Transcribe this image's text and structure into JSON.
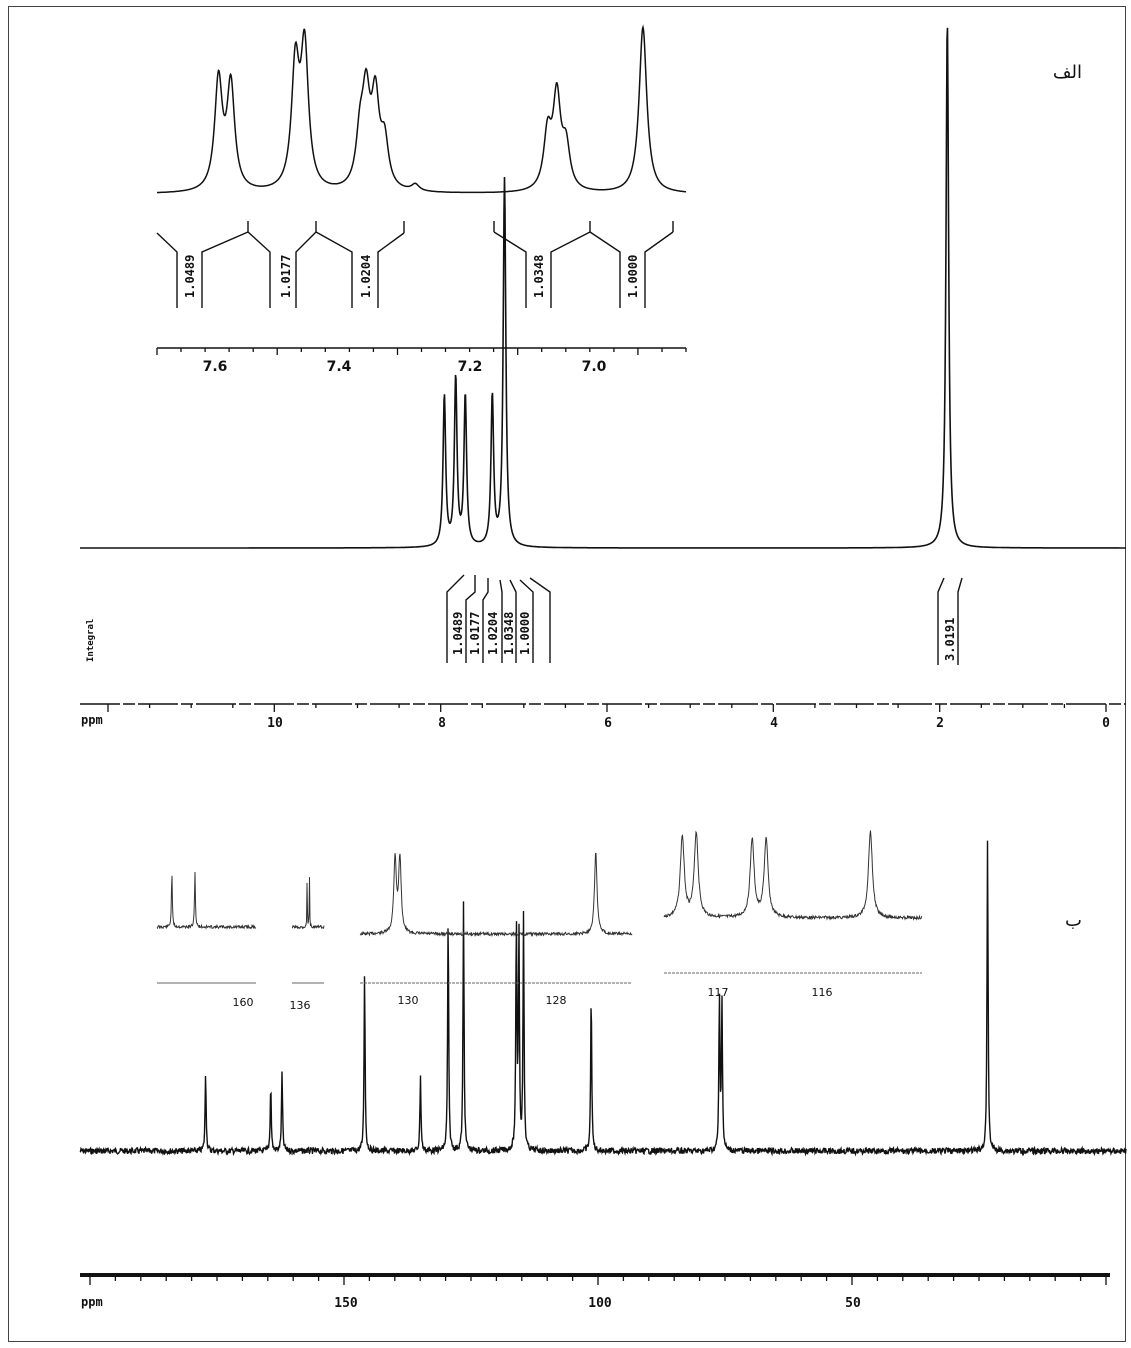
{
  "panels": {
    "a": {
      "label": "الف",
      "axis_unit": "ppm",
      "integral_title": "Integral",
      "ticks": [
        "10",
        "8",
        "6",
        "4",
        "2",
        "0"
      ],
      "inset_ticks": [
        "7.6",
        "7.4",
        "7.2",
        "7.0"
      ],
      "integrals": [
        "1.0489",
        "1.0177",
        "1.0204",
        "1.0348",
        "1.0000",
        "3.0191"
      ]
    },
    "b": {
      "label": "ب",
      "axis_unit": "ppm",
      "ticks": [
        "150",
        "100",
        "50"
      ],
      "inset_ticks": [
        "160",
        "136",
        "130",
        "128",
        "117",
        "116"
      ]
    }
  },
  "chart_data": [
    {
      "type": "line",
      "title": "",
      "xlabel": "ppm",
      "ylabel": "",
      "xlim": [
        11.8,
        -0.2
      ],
      "x_reversed": true,
      "peaks": [
        {
          "ppm": 7.62,
          "rel_height": 0.41
        },
        {
          "ppm": 7.49,
          "rel_height": 0.46
        },
        {
          "ppm": 7.38,
          "rel_height": 0.41
        },
        {
          "ppm": 7.07,
          "rel_height": 0.42
        },
        {
          "ppm": 6.93,
          "rel_height": 0.97
        },
        {
          "ppm": 1.85,
          "rel_height": 1.0
        }
      ],
      "integrals": [
        {
          "ppm": 7.62,
          "value": 1.0489
        },
        {
          "ppm": 7.49,
          "value": 1.0177
        },
        {
          "ppm": 7.38,
          "value": 1.0204
        },
        {
          "ppm": 7.07,
          "value": 1.0348
        },
        {
          "ppm": 6.93,
          "value": 1.0
        },
        {
          "ppm": 1.85,
          "value": 3.0191
        }
      ],
      "inset": {
        "xlim": [
          7.72,
          6.86
        ],
        "peaks": [
          {
            "ppm": 7.62,
            "rel_height": 0.66
          },
          {
            "ppm": 7.6,
            "rel_height": 0.63
          },
          {
            "ppm": 7.495,
            "rel_height": 0.73
          },
          {
            "ppm": 7.48,
            "rel_height": 0.83
          },
          {
            "ppm": 7.39,
            "rel_height": 0.29
          },
          {
            "ppm": 7.38,
            "rel_height": 0.52
          },
          {
            "ppm": 7.365,
            "rel_height": 0.52
          },
          {
            "ppm": 7.35,
            "rel_height": 0.27
          },
          {
            "ppm": 7.3,
            "rel_height": 0.04
          },
          {
            "ppm": 7.085,
            "rel_height": 0.33
          },
          {
            "ppm": 7.07,
            "rel_height": 0.55
          },
          {
            "ppm": 7.055,
            "rel_height": 0.25
          },
          {
            "ppm": 6.93,
            "rel_height": 1.0
          }
        ]
      }
    },
    {
      "type": "line",
      "title": "",
      "xlabel": "ppm",
      "ylabel": "",
      "xlim": [
        202,
        -2
      ],
      "x_reversed": true,
      "peaks": [
        {
          "ppm": 177.5,
          "rel_height": 0.25
        },
        {
          "ppm": 164.8,
          "rel_height": 0.21
        },
        {
          "ppm": 162.6,
          "rel_height": 0.25
        },
        {
          "ppm": 146.5,
          "rel_height": 0.57
        },
        {
          "ppm": 135.6,
          "rel_height": 0.24
        },
        {
          "ppm": 130.2,
          "rel_height": 0.75
        },
        {
          "ppm": 127.2,
          "rel_height": 0.79
        },
        {
          "ppm": 116.9,
          "rel_height": 0.73
        },
        {
          "ppm": 116.4,
          "rel_height": 0.69
        },
        {
          "ppm": 115.5,
          "rel_height": 0.74
        },
        {
          "ppm": 102.3,
          "rel_height": 0.51
        },
        {
          "ppm": 77.3,
          "rel_height": 0.48
        },
        {
          "ppm": 76.8,
          "rel_height": 0.48
        },
        {
          "ppm": 25.0,
          "rel_height": 1.0
        }
      ],
      "insets": [
        {
          "xlim": [
            163.5,
            157.5
          ],
          "ticks": [
            160
          ],
          "peaks": [
            {
              "ppm": 162.6,
              "rel_height": 0.95
            },
            {
              "ppm": 161.2,
              "rel_height": 0.95
            }
          ]
        },
        {
          "xlim": [
            136.6,
            134.8
          ],
          "ticks": [
            136
          ],
          "peaks": [
            {
              "ppm": 135.75,
              "rel_height": 0.95
            },
            {
              "ppm": 135.62,
              "rel_height": 0.95
            }
          ]
        },
        {
          "xlim": [
            131.0,
            126.5
          ],
          "ticks": [
            130,
            128
          ],
          "peaks": [
            {
              "ppm": 130.42,
              "rel_height": 0.92
            },
            {
              "ppm": 130.34,
              "rel_height": 0.92
            },
            {
              "ppm": 127.1,
              "rel_height": 1.0
            }
          ]
        },
        {
          "xlim": [
            117.4,
            115.0
          ],
          "ticks": [
            117,
            116
          ],
          "peaks": [
            {
              "ppm": 117.23,
              "rel_height": 0.88
            },
            {
              "ppm": 117.1,
              "rel_height": 0.92
            },
            {
              "ppm": 116.58,
              "rel_height": 0.85
            },
            {
              "ppm": 116.45,
              "rel_height": 0.85
            },
            {
              "ppm": 115.48,
              "rel_height": 0.95
            }
          ]
        }
      ]
    }
  ]
}
